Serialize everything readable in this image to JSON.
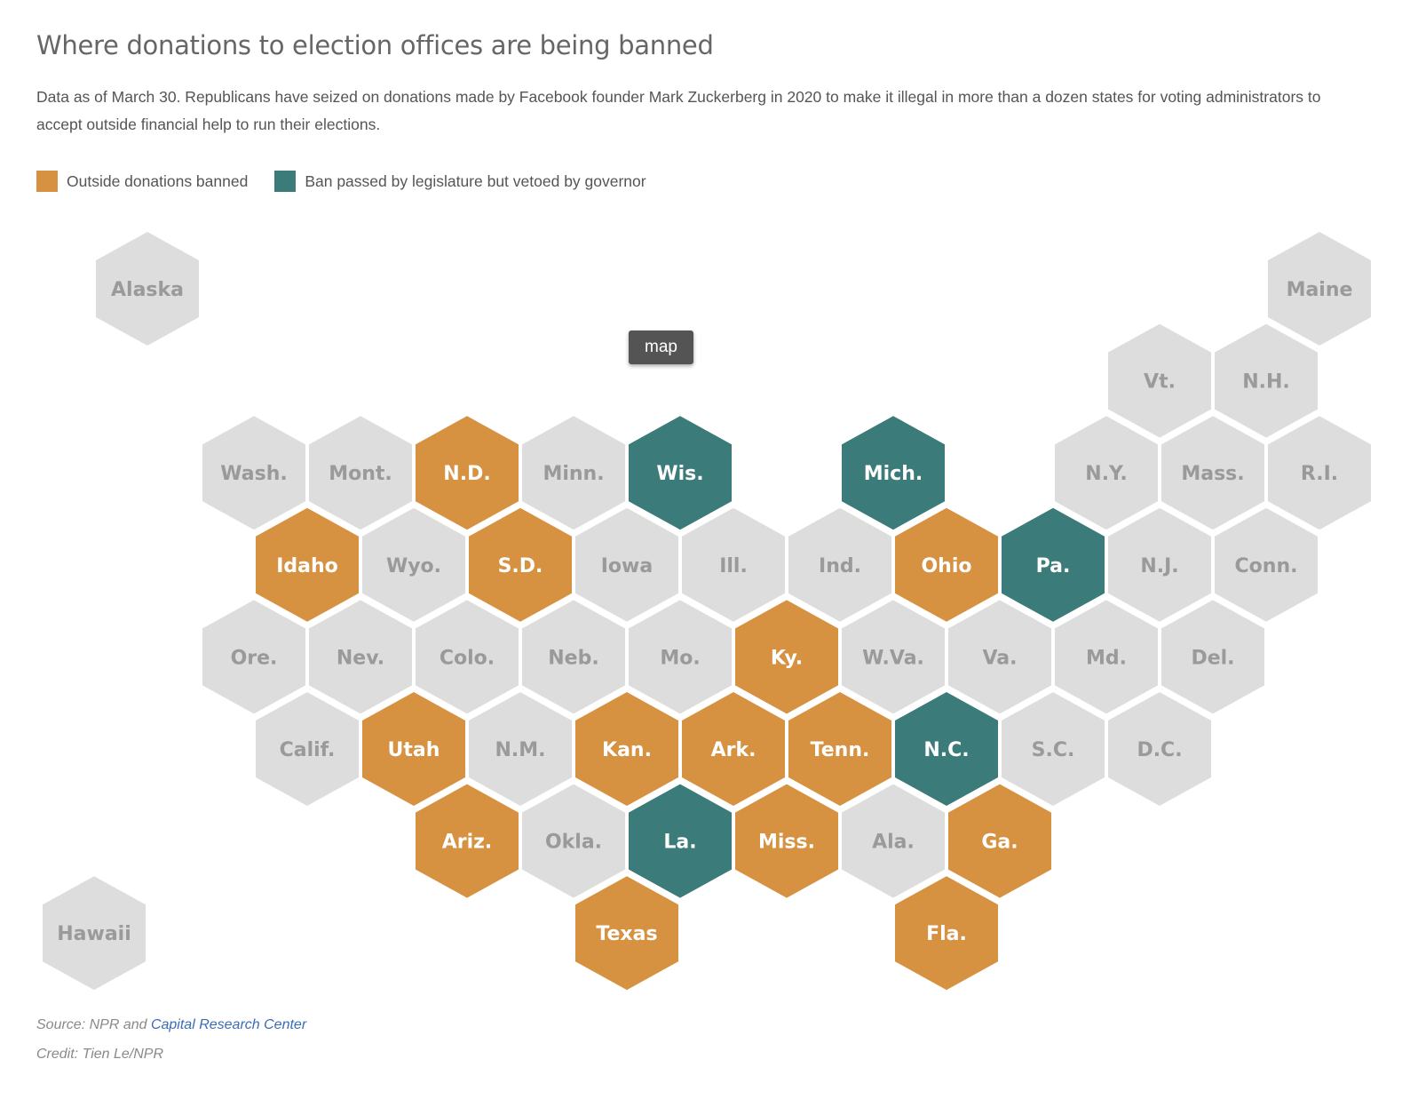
{
  "title": "Where donations to election offices are being banned",
  "subtitle": "Data as of March 30. Republicans have seized on donations made by Facebook founder Mark Zuckerberg in 2020 to make it illegal in more than a dozen states for voting administrators to accept outside financial help to run their elections.",
  "legend": [
    {
      "label": "Outside donations banned",
      "color": "#d69141"
    },
    {
      "label": "Ban passed by legislature but vetoed by governor",
      "color": "#3b7b7a"
    }
  ],
  "colors": {
    "banned": "#d69141",
    "vetoed": "#3b7b7a",
    "none": "#dddddd",
    "label_dark": "#9a9a9a",
    "label_light": "#ffffff"
  },
  "tooltip": "map",
  "source_prefix": "Source: NPR and ",
  "source_link": "Capital Research Center",
  "credit": "Credit: Tien Le/NPR",
  "states": [
    {
      "label": "Alaska",
      "status": "none"
    },
    {
      "label": "Maine",
      "status": "none"
    },
    {
      "label": "Vt.",
      "status": "none"
    },
    {
      "label": "N.H.",
      "status": "none"
    },
    {
      "label": "Wash.",
      "status": "none"
    },
    {
      "label": "Mont.",
      "status": "none"
    },
    {
      "label": "N.D.",
      "status": "banned"
    },
    {
      "label": "Minn.",
      "status": "none"
    },
    {
      "label": "Wis.",
      "status": "vetoed"
    },
    {
      "label": "Mich.",
      "status": "vetoed"
    },
    {
      "label": "N.Y.",
      "status": "none"
    },
    {
      "label": "Mass.",
      "status": "none"
    },
    {
      "label": "R.I.",
      "status": "none"
    },
    {
      "label": "Idaho",
      "status": "banned"
    },
    {
      "label": "Wyo.",
      "status": "none"
    },
    {
      "label": "S.D.",
      "status": "banned"
    },
    {
      "label": "Iowa",
      "status": "none"
    },
    {
      "label": "Ill.",
      "status": "none"
    },
    {
      "label": "Ind.",
      "status": "none"
    },
    {
      "label": "Ohio",
      "status": "banned"
    },
    {
      "label": "Pa.",
      "status": "vetoed"
    },
    {
      "label": "N.J.",
      "status": "none"
    },
    {
      "label": "Conn.",
      "status": "none"
    },
    {
      "label": "Ore.",
      "status": "none"
    },
    {
      "label": "Nev.",
      "status": "none"
    },
    {
      "label": "Colo.",
      "status": "none"
    },
    {
      "label": "Neb.",
      "status": "none"
    },
    {
      "label": "Mo.",
      "status": "none"
    },
    {
      "label": "Ky.",
      "status": "banned"
    },
    {
      "label": "W.Va.",
      "status": "none"
    },
    {
      "label": "Va.",
      "status": "none"
    },
    {
      "label": "Md.",
      "status": "none"
    },
    {
      "label": "Del.",
      "status": "none"
    },
    {
      "label": "Calif.",
      "status": "none"
    },
    {
      "label": "Utah",
      "status": "banned"
    },
    {
      "label": "N.M.",
      "status": "none"
    },
    {
      "label": "Kan.",
      "status": "banned"
    },
    {
      "label": "Ark.",
      "status": "banned"
    },
    {
      "label": "Tenn.",
      "status": "banned"
    },
    {
      "label": "N.C.",
      "status": "vetoed"
    },
    {
      "label": "S.C.",
      "status": "none"
    },
    {
      "label": "D.C.",
      "status": "none"
    },
    {
      "label": "Ariz.",
      "status": "banned"
    },
    {
      "label": "Okla.",
      "status": "none"
    },
    {
      "label": "La.",
      "status": "vetoed"
    },
    {
      "label": "Miss.",
      "status": "banned"
    },
    {
      "label": "Ala.",
      "status": "none"
    },
    {
      "label": "Ga.",
      "status": "banned"
    },
    {
      "label": "Texas",
      "status": "banned"
    },
    {
      "label": "Fla.",
      "status": "banned"
    },
    {
      "label": "Hawaii",
      "status": "none"
    }
  ]
}
